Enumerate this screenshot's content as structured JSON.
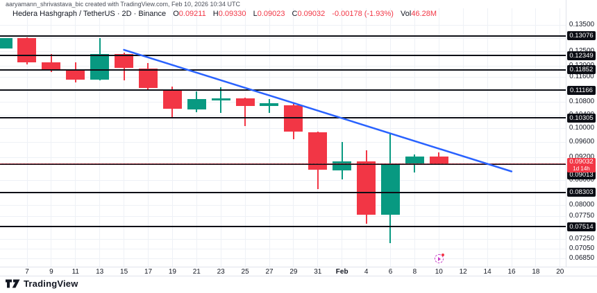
{
  "attribution": "aaryamann_shrivastava_bic created with TradingView.com, Feb 10, 2026 10:34 UTC",
  "legend": {
    "title": "Hedera Hashgraph / TetherUS · 2D · Binance",
    "o_label": "O",
    "o": "0.09211",
    "h_label": "H",
    "h": "0.09330",
    "l_label": "L",
    "l": "0.09023",
    "c_label": "C",
    "c": "0.09032",
    "change": "-0.00178 (-1.93%)",
    "vol_label": "Vol",
    "vol": "46.28M"
  },
  "chart_data": {
    "type": "candlestick",
    "title": "Hedera Hashgraph / TetherUS",
    "interval": "2D",
    "exchange": "Binance",
    "scale": "logarithmic",
    "grid": true,
    "visible_price_range": [
      0.0685,
      0.135
    ],
    "price_axis_ticks": [
      "0.13500",
      "0.13000",
      "0.12500",
      "0.12000",
      "0.11600",
      "0.10800",
      "0.10400",
      "0.10000",
      "0.09600",
      "0.09200",
      "0.08600",
      "0.08000",
      "0.07750",
      "0.07250",
      "0.07050",
      "0.06850"
    ],
    "time_axis_labels": [
      "7",
      "9",
      "11",
      "13",
      "15",
      "17",
      "19",
      "21",
      "23",
      "25",
      "27",
      "29",
      "31",
      "Feb",
      "4",
      "6",
      "8",
      "10",
      "12",
      "14",
      "16",
      "18",
      "20"
    ],
    "candles": [
      {
        "date": "Jan 5",
        "o": 0.1261,
        "h": 0.13,
        "l": 0.1261,
        "c": 0.13
      },
      {
        "date": "Jan 7",
        "o": 0.13,
        "h": 0.1302,
        "l": 0.1204,
        "c": 0.1211
      },
      {
        "date": "Jan 9",
        "o": 0.1211,
        "h": 0.1241,
        "l": 0.1176,
        "c": 0.1185
      },
      {
        "date": "Jan 11",
        "o": 0.1183,
        "h": 0.1211,
        "l": 0.1143,
        "c": 0.1152
      },
      {
        "date": "Jan 13",
        "o": 0.1152,
        "h": 0.13,
        "l": 0.1148,
        "c": 0.1241
      },
      {
        "date": "Jan 15",
        "o": 0.1241,
        "h": 0.1245,
        "l": 0.115,
        "c": 0.1192
      },
      {
        "date": "Jan 17",
        "o": 0.119,
        "h": 0.1209,
        "l": 0.1117,
        "c": 0.1124
      },
      {
        "date": "Jan 19",
        "o": 0.1119,
        "h": 0.1128,
        "l": 0.1031,
        "c": 0.1058
      },
      {
        "date": "Jan 21",
        "o": 0.1056,
        "h": 0.1114,
        "l": 0.1048,
        "c": 0.1088
      },
      {
        "date": "Jan 23",
        "o": 0.1084,
        "h": 0.1126,
        "l": 0.1046,
        "c": 0.109
      },
      {
        "date": "Jan 25",
        "o": 0.109,
        "h": 0.1092,
        "l": 0.1007,
        "c": 0.1067
      },
      {
        "date": "Jan 27",
        "o": 0.1067,
        "h": 0.1088,
        "l": 0.1046,
        "c": 0.1075
      },
      {
        "date": "Jan 29",
        "o": 0.1069,
        "h": 0.1077,
        "l": 0.0968,
        "c": 0.099
      },
      {
        "date": "Jan 31",
        "o": 0.0988,
        "h": 0.099,
        "l": 0.0838,
        "c": 0.0886
      },
      {
        "date": "Feb 2",
        "o": 0.0884,
        "h": 0.0961,
        "l": 0.0861,
        "c": 0.0909
      },
      {
        "date": "Feb 4",
        "o": 0.0909,
        "h": 0.0937,
        "l": 0.0758,
        "c": 0.0777
      },
      {
        "date": "Feb 6",
        "o": 0.0777,
        "h": 0.0986,
        "l": 0.0716,
        "c": 0.0902
      },
      {
        "date": "Feb 8",
        "o": 0.0902,
        "h": 0.0926,
        "l": 0.088,
        "c": 0.0921
      },
      {
        "date": "Feb 10",
        "o": 0.09211,
        "h": 0.0933,
        "l": 0.09023,
        "c": 0.09032
      }
    ],
    "level_lines": [
      "0.13076",
      "0.12349",
      "0.11852",
      "0.11166",
      "0.10305",
      "0.09013",
      "0.08303",
      "0.07514"
    ],
    "current_price": {
      "value": "0.09032",
      "countdown": "1d 14h"
    },
    "trendline": {
      "from_index": 5,
      "from_price": 0.1256,
      "to_index": 21,
      "to_price": 0.0882
    },
    "event_marker": {
      "x_index": 18
    },
    "colors": {
      "up": "#089981",
      "down": "#F23645",
      "trendline": "#2962FF",
      "level_line": "#0c0e15",
      "current_price_line": "#F23645"
    }
  },
  "footer": {
    "brand": "TradingView"
  }
}
